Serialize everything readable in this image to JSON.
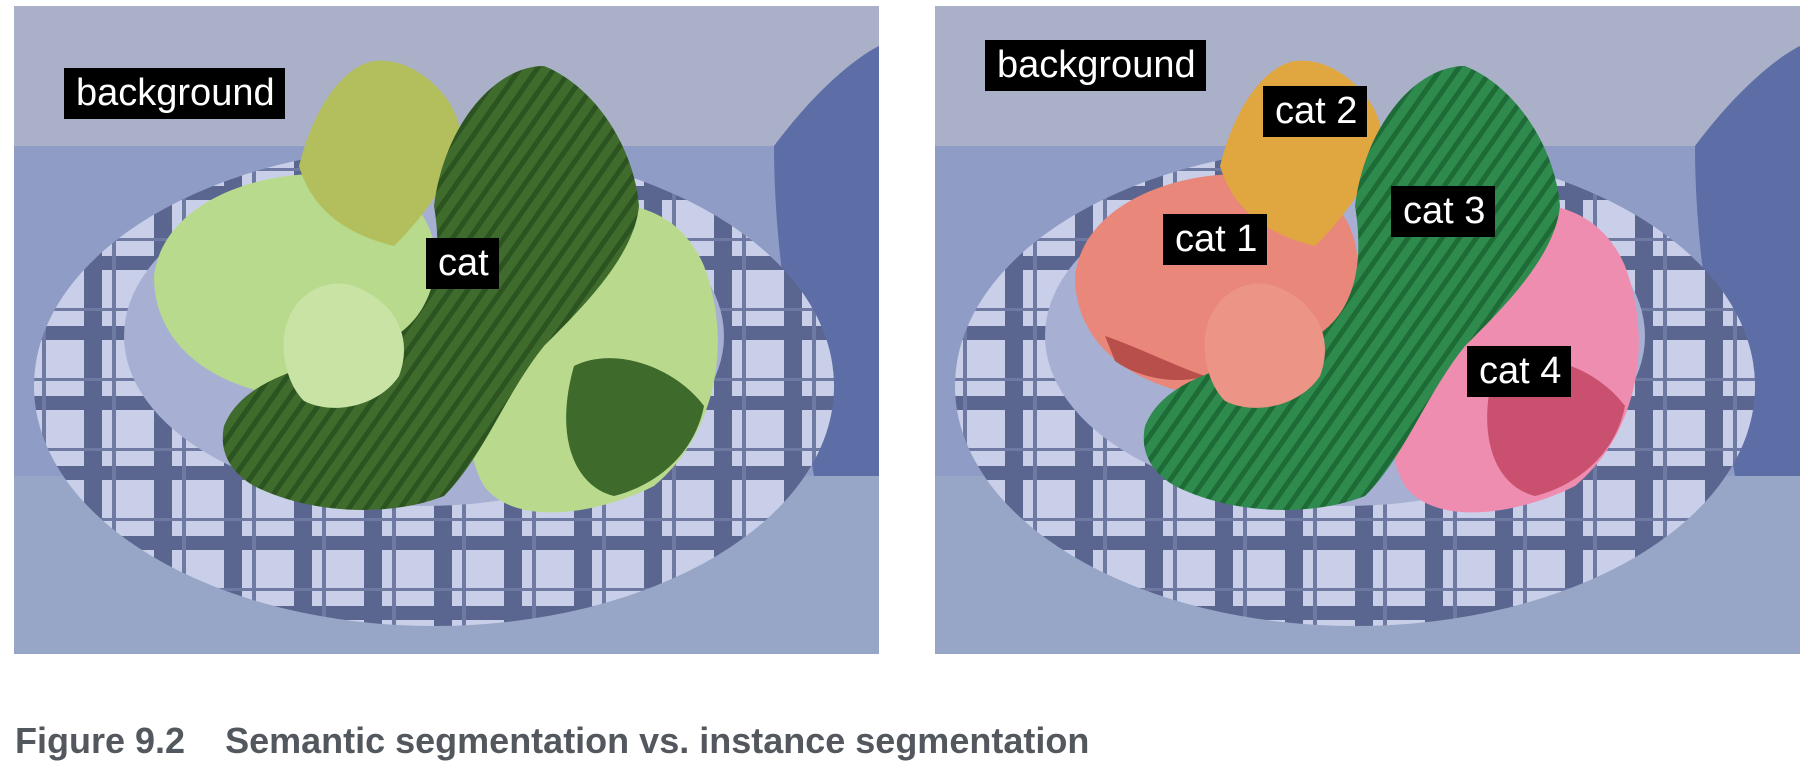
{
  "figure": {
    "number": "Figure 9.2",
    "title": "Semantic segmentation vs. instance segmentation"
  },
  "panels": [
    {
      "mode": "semantic",
      "labels": {
        "background": "background",
        "cat": "cat"
      },
      "colors": {
        "background": "#8e9fcf",
        "cat_light": "#b6d98a",
        "cat_dark": "#3d6a2a",
        "cat_orange": "#b3be5c"
      }
    },
    {
      "mode": "instance",
      "labels": {
        "background": "background",
        "cat1": "cat 1",
        "cat2": "cat 2",
        "cat3": "cat 3",
        "cat4": "cat 4"
      },
      "colors": {
        "background": "#8e9fcf",
        "cat1": "#e9877a",
        "cat2": "#e0a63f",
        "cat3": "#2f8a4e",
        "cat4": "#ef8db0"
      }
    }
  ]
}
